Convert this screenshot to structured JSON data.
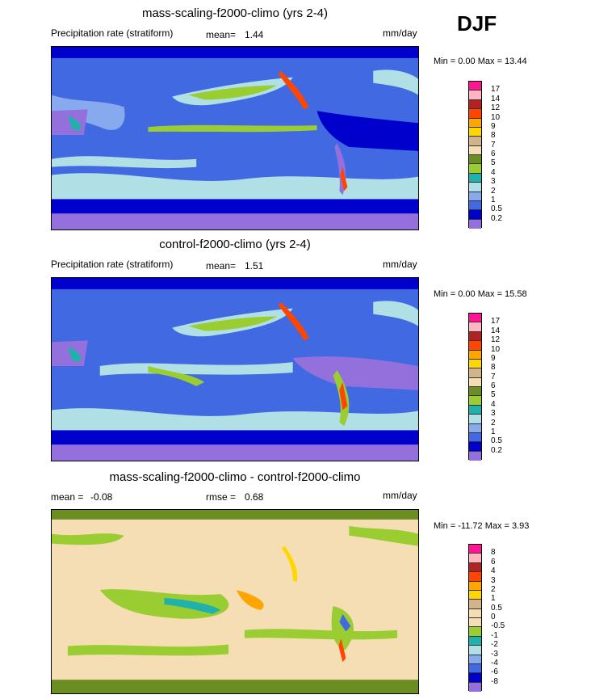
{
  "season": "DJF",
  "panels": [
    {
      "title": "mass-scaling-f2000-climo (yrs 2-4)",
      "variable": "Precipitation rate (stratiform)",
      "stat_label": "mean=",
      "stat_value": "1.44",
      "units": "mm/day",
      "range": "Min =   0.00 Max =  13.44",
      "levels": [
        "17",
        "14",
        "12",
        "10",
        "9",
        "8",
        "7",
        "6",
        "5",
        "4",
        "3",
        "2",
        "1",
        "0.5",
        "0.2"
      ],
      "colors": [
        "#ff1493",
        "#ffb6c1",
        "#b22222",
        "#ff4500",
        "#ffa500",
        "#ffd700",
        "#d2b48c",
        "#f5deb3",
        "#6b8e23",
        "#9acd32",
        "#20b2aa",
        "#b0e0e6",
        "#87a9ee",
        "#4169e1",
        "#0000cd",
        "#9370db"
      ]
    },
    {
      "title": "control-f2000-climo (yrs 2-4)",
      "variable": "Precipitation rate (stratiform)",
      "stat_label": "mean=",
      "stat_value": "1.51",
      "units": "mm/day",
      "range": "Min =   0.00 Max =  15.58",
      "levels": [
        "17",
        "14",
        "12",
        "10",
        "9",
        "8",
        "7",
        "6",
        "5",
        "4",
        "3",
        "2",
        "1",
        "0.5",
        "0.2"
      ],
      "colors": [
        "#ff1493",
        "#ffb6c1",
        "#b22222",
        "#ff4500",
        "#ffa500",
        "#ffd700",
        "#d2b48c",
        "#f5deb3",
        "#6b8e23",
        "#9acd32",
        "#20b2aa",
        "#b0e0e6",
        "#87a9ee",
        "#4169e1",
        "#0000cd",
        "#9370db"
      ]
    },
    {
      "title": "mass-scaling-f2000-climo - control-f2000-climo",
      "mean_label": "mean =",
      "mean_value": "-0.08",
      "rmse_label": "rmse =",
      "rmse_value": "0.68",
      "units": "mm/day",
      "range": "Min = -11.72 Max =    3.93",
      "levels": [
        "8",
        "6",
        "4",
        "3",
        "2",
        "1",
        "0.5",
        "0",
        "-0.5",
        "-1",
        "-2",
        "-3",
        "-4",
        "-6",
        "-8"
      ],
      "colors": [
        "#ff1493",
        "#ffb6c1",
        "#b22222",
        "#ff4500",
        "#ffa500",
        "#ffd700",
        "#d2b48c",
        "#f5deb3",
        "#f5deb3",
        "#9acd32",
        "#20b2aa",
        "#b0e0e6",
        "#87a9ee",
        "#4169e1",
        "#0000cd",
        "#9370db"
      ]
    }
  ]
}
